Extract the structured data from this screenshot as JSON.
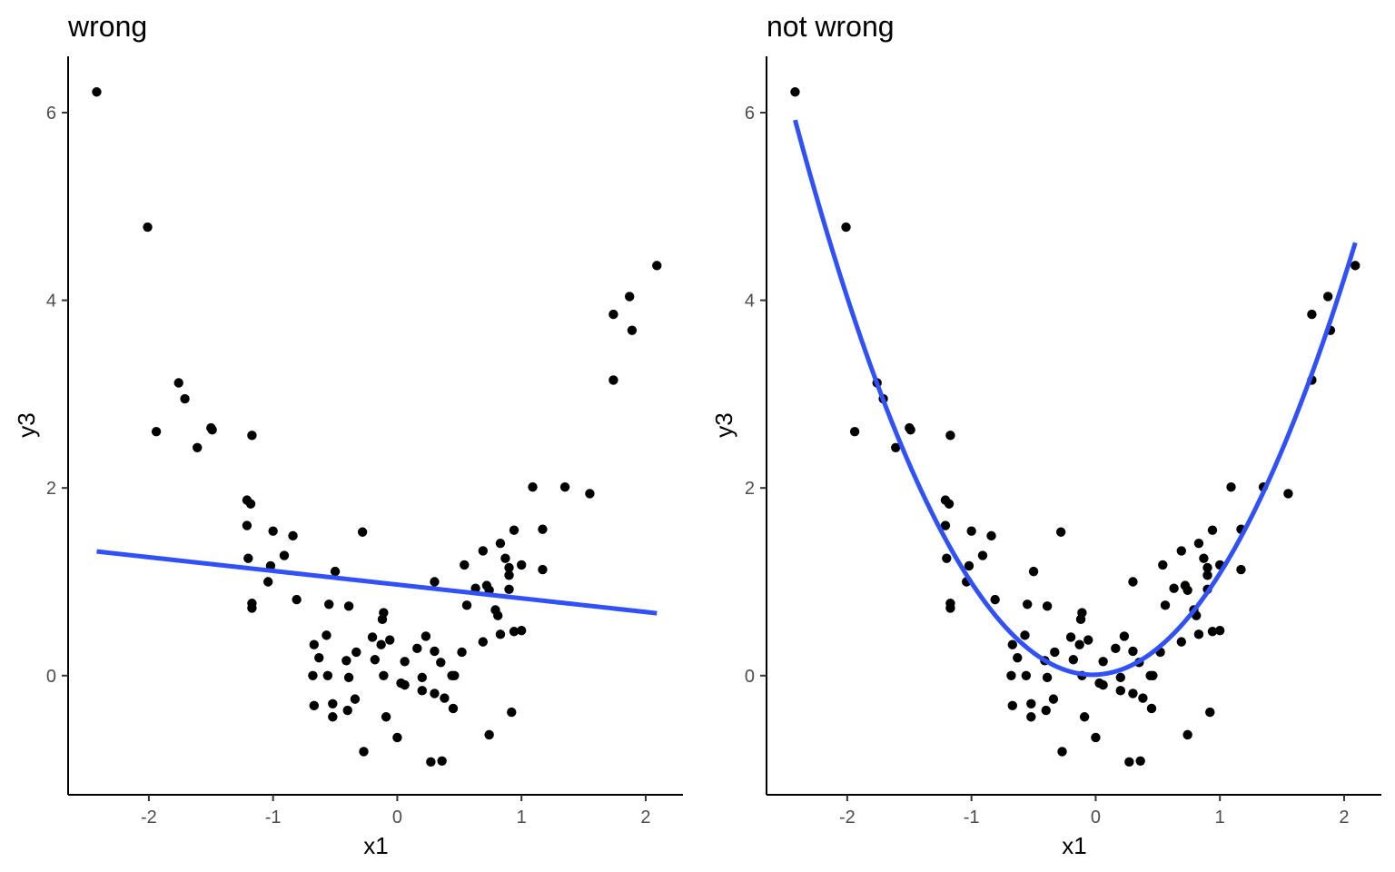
{
  "colors": {
    "fit": "#3050F8",
    "points": "#000000",
    "axis": "#000000",
    "tick_text": "#4d4d4d"
  },
  "chart_data": [
    {
      "type": "scatter",
      "title": "wrong",
      "xlabel": "x1",
      "ylabel": "y3",
      "xlim": [
        -2.65,
        2.3
      ],
      "ylim": [
        -1.27,
        6.6
      ],
      "x_ticks": [
        -2,
        -1,
        0,
        1,
        2
      ],
      "y_ticks": [
        0,
        2,
        4,
        6
      ],
      "x_tick_labels": [
        "-2",
        "-1",
        "0",
        "1",
        "2"
      ],
      "y_tick_labels": [
        "0",
        "2",
        "4",
        "6"
      ],
      "grid": false,
      "fit": {
        "kind": "linear",
        "x_range": [
          -2.42,
          2.09
        ],
        "coefficients": [
          0.97,
          -0.146
        ]
      },
      "points": [
        [
          -2.42,
          6.22
        ],
        [
          -2.01,
          4.78
        ],
        [
          -1.94,
          2.6
        ],
        [
          -1.76,
          3.12
        ],
        [
          -1.71,
          2.95
        ],
        [
          -1.61,
          2.43
        ],
        [
          -1.5,
          2.64
        ],
        [
          -1.49,
          2.62
        ],
        [
          -1.17,
          2.56
        ],
        [
          -1.21,
          1.87
        ],
        [
          -1.18,
          1.83
        ],
        [
          -1.21,
          1.6
        ],
        [
          -1.2,
          1.25
        ],
        [
          -1.17,
          0.77
        ],
        [
          -1.17,
          0.72
        ],
        [
          -1.0,
          1.54
        ],
        [
          -0.84,
          1.49
        ],
        [
          -0.91,
          1.28
        ],
        [
          -1.02,
          1.17
        ],
        [
          -1.04,
          1.0
        ],
        [
          -0.81,
          0.81
        ],
        [
          -0.5,
          1.11
        ],
        [
          -0.28,
          1.53
        ],
        [
          -0.55,
          0.76
        ],
        [
          -0.39,
          0.74
        ],
        [
          -0.57,
          0.43
        ],
        [
          -0.67,
          0.33
        ],
        [
          -0.63,
          0.19
        ],
        [
          -0.41,
          0.16
        ],
        [
          -0.33,
          0.25
        ],
        [
          -0.68,
          0.0
        ],
        [
          -0.56,
          0.0
        ],
        [
          -0.39,
          -0.02
        ],
        [
          -0.67,
          -0.32
        ],
        [
          -0.52,
          -0.3
        ],
        [
          -0.34,
          -0.25
        ],
        [
          -0.52,
          -0.44
        ],
        [
          -0.4,
          -0.37
        ],
        [
          -0.27,
          -0.81
        ],
        [
          -0.2,
          0.41
        ],
        [
          -0.18,
          0.17
        ],
        [
          -0.13,
          0.33
        ],
        [
          -0.12,
          0.6
        ],
        [
          -0.11,
          0.67
        ],
        [
          -0.06,
          0.38
        ],
        [
          -0.11,
          0.0
        ],
        [
          0.03,
          -0.08
        ],
        [
          0.06,
          -0.1
        ],
        [
          -0.09,
          -0.44
        ],
        [
          0.0,
          -0.66
        ],
        [
          0.06,
          0.15
        ],
        [
          0.16,
          0.29
        ],
        [
          0.23,
          0.42
        ],
        [
          0.2,
          -0.02
        ],
        [
          0.2,
          -0.16
        ],
        [
          0.3,
          -0.19
        ],
        [
          0.3,
          0.26
        ],
        [
          0.35,
          0.14
        ],
        [
          0.38,
          -0.24
        ],
        [
          0.3,
          1.0
        ],
        [
          0.44,
          0.0
        ],
        [
          0.46,
          0.0
        ],
        [
          0.45,
          -0.35
        ],
        [
          0.52,
          0.25
        ],
        [
          0.27,
          -0.92
        ],
        [
          0.36,
          -0.91
        ],
        [
          0.54,
          1.18
        ],
        [
          0.56,
          0.75
        ],
        [
          0.63,
          0.93
        ],
        [
          0.69,
          1.33
        ],
        [
          0.72,
          0.96
        ],
        [
          0.74,
          0.91
        ],
        [
          0.69,
          0.36
        ],
        [
          0.74,
          -0.63
        ],
        [
          0.79,
          0.7
        ],
        [
          0.81,
          0.64
        ],
        [
          0.83,
          1.41
        ],
        [
          0.87,
          1.25
        ],
        [
          0.9,
          1.15
        ],
        [
          0.9,
          1.07
        ],
        [
          0.94,
          1.55
        ],
        [
          0.83,
          0.44
        ],
        [
          0.9,
          0.92
        ],
        [
          0.94,
          0.47
        ],
        [
          1.0,
          1.18
        ],
        [
          1.0,
          0.48
        ],
        [
          0.92,
          -0.39
        ],
        [
          1.09,
          2.01
        ],
        [
          1.17,
          1.56
        ],
        [
          1.17,
          1.13
        ],
        [
          1.35,
          2.01
        ],
        [
          1.55,
          1.94
        ],
        [
          1.74,
          3.85
        ],
        [
          1.74,
          3.15
        ],
        [
          1.87,
          4.04
        ],
        [
          1.89,
          3.68
        ],
        [
          2.09,
          4.37
        ]
      ]
    },
    {
      "type": "scatter",
      "title": "not wrong",
      "xlabel": "x1",
      "ylabel": "y3",
      "xlim": [
        -2.65,
        2.3
      ],
      "ylim": [
        -1.27,
        6.6
      ],
      "x_ticks": [
        -2,
        -1,
        0,
        1,
        2
      ],
      "y_ticks": [
        0,
        2,
        4,
        6
      ],
      "x_tick_labels": [
        "-2",
        "-1",
        "0",
        "1",
        "2"
      ],
      "y_tick_labels": [
        "0",
        "2",
        "4",
        "6"
      ],
      "grid": false,
      "fit": {
        "kind": "quadratic",
        "x_range": [
          -2.42,
          2.09
        ],
        "coefficients": [
          0.01,
          0.05,
          1.03
        ]
      },
      "points": [
        [
          -2.42,
          6.22
        ],
        [
          -2.01,
          4.78
        ],
        [
          -1.94,
          2.6
        ],
        [
          -1.76,
          3.12
        ],
        [
          -1.71,
          2.95
        ],
        [
          -1.61,
          2.43
        ],
        [
          -1.5,
          2.64
        ],
        [
          -1.49,
          2.62
        ],
        [
          -1.17,
          2.56
        ],
        [
          -1.21,
          1.87
        ],
        [
          -1.18,
          1.83
        ],
        [
          -1.21,
          1.6
        ],
        [
          -1.2,
          1.25
        ],
        [
          -1.17,
          0.77
        ],
        [
          -1.17,
          0.72
        ],
        [
          -1.0,
          1.54
        ],
        [
          -0.84,
          1.49
        ],
        [
          -0.91,
          1.28
        ],
        [
          -1.02,
          1.17
        ],
        [
          -1.04,
          1.0
        ],
        [
          -0.81,
          0.81
        ],
        [
          -0.5,
          1.11
        ],
        [
          -0.28,
          1.53
        ],
        [
          -0.55,
          0.76
        ],
        [
          -0.39,
          0.74
        ],
        [
          -0.57,
          0.43
        ],
        [
          -0.67,
          0.33
        ],
        [
          -0.63,
          0.19
        ],
        [
          -0.41,
          0.16
        ],
        [
          -0.33,
          0.25
        ],
        [
          -0.68,
          0.0
        ],
        [
          -0.56,
          0.0
        ],
        [
          -0.39,
          -0.02
        ],
        [
          -0.67,
          -0.32
        ],
        [
          -0.52,
          -0.3
        ],
        [
          -0.34,
          -0.25
        ],
        [
          -0.52,
          -0.44
        ],
        [
          -0.4,
          -0.37
        ],
        [
          -0.27,
          -0.81
        ],
        [
          -0.2,
          0.41
        ],
        [
          -0.18,
          0.17
        ],
        [
          -0.13,
          0.33
        ],
        [
          -0.12,
          0.6
        ],
        [
          -0.11,
          0.67
        ],
        [
          -0.06,
          0.38
        ],
        [
          -0.11,
          0.0
        ],
        [
          0.03,
          -0.08
        ],
        [
          0.06,
          -0.1
        ],
        [
          -0.09,
          -0.44
        ],
        [
          0.0,
          -0.66
        ],
        [
          0.06,
          0.15
        ],
        [
          0.16,
          0.29
        ],
        [
          0.23,
          0.42
        ],
        [
          0.2,
          -0.02
        ],
        [
          0.2,
          -0.16
        ],
        [
          0.3,
          -0.19
        ],
        [
          0.3,
          0.26
        ],
        [
          0.35,
          0.14
        ],
        [
          0.38,
          -0.24
        ],
        [
          0.3,
          1.0
        ],
        [
          0.44,
          0.0
        ],
        [
          0.46,
          0.0
        ],
        [
          0.45,
          -0.35
        ],
        [
          0.52,
          0.25
        ],
        [
          0.27,
          -0.92
        ],
        [
          0.36,
          -0.91
        ],
        [
          0.54,
          1.18
        ],
        [
          0.56,
          0.75
        ],
        [
          0.63,
          0.93
        ],
        [
          0.69,
          1.33
        ],
        [
          0.72,
          0.96
        ],
        [
          0.74,
          0.91
        ],
        [
          0.69,
          0.36
        ],
        [
          0.74,
          -0.63
        ],
        [
          0.79,
          0.7
        ],
        [
          0.81,
          0.64
        ],
        [
          0.83,
          1.41
        ],
        [
          0.87,
          1.25
        ],
        [
          0.9,
          1.15
        ],
        [
          0.9,
          1.07
        ],
        [
          0.94,
          1.55
        ],
        [
          0.83,
          0.44
        ],
        [
          0.9,
          0.92
        ],
        [
          0.94,
          0.47
        ],
        [
          1.0,
          1.18
        ],
        [
          1.0,
          0.48
        ],
        [
          0.92,
          -0.39
        ],
        [
          1.09,
          2.01
        ],
        [
          1.17,
          1.56
        ],
        [
          1.17,
          1.13
        ],
        [
          1.35,
          2.01
        ],
        [
          1.55,
          1.94
        ],
        [
          1.74,
          3.85
        ],
        [
          1.74,
          3.15
        ],
        [
          1.87,
          4.04
        ],
        [
          1.89,
          3.68
        ],
        [
          2.09,
          4.37
        ]
      ]
    }
  ]
}
